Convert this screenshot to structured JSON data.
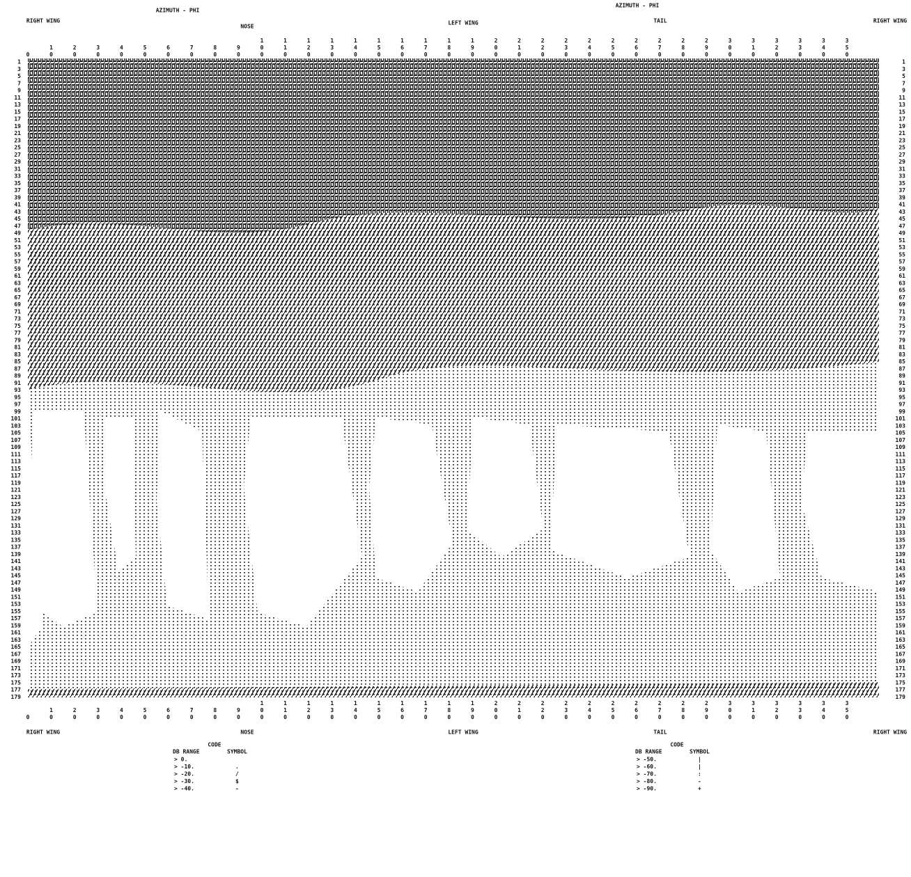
{
  "header": {
    "left_title": "AZIMUTH - PHI",
    "right_title": "AZIMUTH - PHI",
    "top_labels": [
      "RIGHT WING",
      "NOSE",
      "LEFT WING",
      "TAIL",
      "RIGHT WING"
    ],
    "bottom_labels": [
      "RIGHT WING",
      "NOSE",
      "LEFT WING",
      "TAIL",
      "RIGHT WING"
    ]
  },
  "columns": [
    0,
    10,
    20,
    30,
    40,
    50,
    60,
    70,
    80,
    90,
    100,
    110,
    120,
    130,
    140,
    150,
    160,
    170,
    180,
    190,
    200,
    210,
    220,
    230,
    240,
    250,
    260,
    270,
    280,
    290,
    300,
    310,
    320,
    330,
    340,
    350
  ],
  "rows": [
    1,
    3,
    5,
    7,
    9,
    11,
    13,
    15,
    17,
    19,
    21,
    23,
    25,
    27,
    29,
    31,
    33,
    35,
    37,
    39,
    41,
    43,
    45,
    47,
    49,
    51,
    53,
    55,
    57,
    59,
    61,
    63,
    65,
    67,
    69,
    71,
    73,
    75,
    77,
    79,
    81,
    83,
    85,
    87,
    89,
    91,
    93,
    95,
    97,
    99,
    101,
    103,
    105,
    107,
    109,
    111,
    113,
    115,
    117,
    119,
    121,
    123,
    125,
    127,
    129,
    131,
    133,
    135,
    137,
    139,
    141,
    143,
    145,
    147,
    149,
    151,
    153,
    155,
    157,
    159,
    161,
    163,
    165,
    167,
    169,
    171,
    173,
    175,
    177,
    179
  ],
  "legend_left": {
    "title": "CODE",
    "range_header": "DB RANGE",
    "symbol_header": "SYMBOL",
    "rows": [
      {
        "range": "> 0."
      },
      {
        "range": "> -10.",
        "symbol": "."
      },
      {
        "range": "> -20.",
        "symbol": "/"
      },
      {
        "range": "> -30.",
        "symbol": "$"
      },
      {
        "range": "> -40.",
        "symbol": "-"
      }
    ]
  },
  "legend_right": {
    "title": "CODE",
    "range_header": "DB RANGE",
    "symbol_header": "SYMBOL",
    "rows": [
      {
        "range": "> -50.",
        "symbol": "|"
      },
      {
        "range": "> -60.",
        "symbol": "|"
      },
      {
        "range": "> -70.",
        "symbol": ":"
      },
      {
        "range": "> -80.",
        "symbol": "-"
      },
      {
        "range": "> -90.",
        "symbol": "+"
      }
    ]
  }
}
